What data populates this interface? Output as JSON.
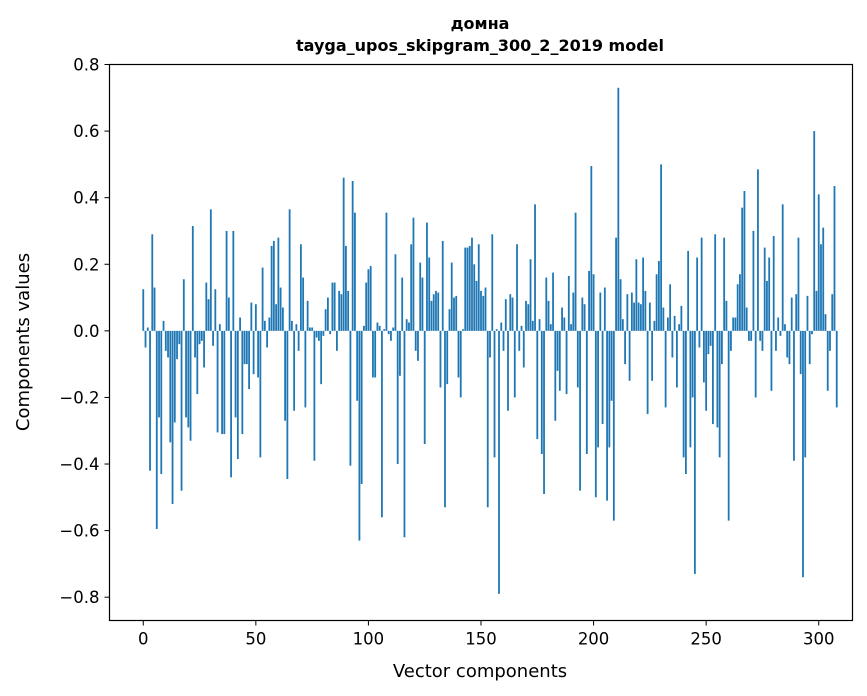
{
  "chart_data": {
    "type": "bar",
    "title_line1": "домна",
    "title_line2": "tayga_upos_skipgram_300_2_2019 model",
    "xlabel": "Vector components",
    "ylabel": "Components values",
    "xlim": [
      -15,
      315
    ],
    "ylim": [
      -0.87,
      0.8
    ],
    "xticks": [
      0,
      50,
      100,
      150,
      200,
      250,
      300
    ],
    "xtick_labels": [
      "0",
      "50",
      "100",
      "150",
      "200",
      "250",
      "300"
    ],
    "yticks": [
      -0.8,
      -0.6,
      -0.4,
      -0.2,
      0.0,
      0.2,
      0.4,
      0.6,
      0.8
    ],
    "ytick_labels": [
      "−0.8",
      "−0.6",
      "−0.4",
      "−0.2",
      "0.0",
      "0.2",
      "0.4",
      "0.6",
      "0.8"
    ],
    "bar_color": "#1f77b4",
    "values": [
      0.125,
      -0.05,
      0.01,
      -0.42,
      0.29,
      0.13,
      -0.595,
      -0.26,
      -0.43,
      0.03,
      -0.06,
      -0.08,
      -0.335,
      -0.52,
      -0.275,
      -0.085,
      -0.04,
      -0.48,
      0.155,
      -0.26,
      -0.29,
      -0.33,
      0.315,
      -0.08,
      -0.19,
      -0.04,
      -0.03,
      -0.11,
      0.145,
      0.095,
      0.365,
      -0.045,
      0.125,
      -0.305,
      0.02,
      -0.31,
      -0.31,
      0.3,
      0.1,
      -0.44,
      0.3,
      -0.26,
      -0.385,
      0.04,
      -0.31,
      -0.1,
      -0.1,
      -0.175,
      0.085,
      -0.13,
      0.08,
      -0.14,
      -0.38,
      0.19,
      0.03,
      -0.05,
      0.04,
      0.255,
      0.27,
      0.08,
      0.28,
      0.13,
      0.07,
      -0.27,
      -0.445,
      0.365,
      0.03,
      -0.24,
      0.02,
      -0.06,
      0.26,
      0.16,
      -0.23,
      0.09,
      0.01,
      0.01,
      -0.39,
      -0.02,
      -0.03,
      -0.16,
      -0.015,
      0.065,
      0.1,
      -0.01,
      0.145,
      0.145,
      -0.06,
      0.12,
      0.11,
      0.46,
      0.255,
      0.12,
      -0.405,
      0.45,
      0.355,
      -0.21,
      -0.63,
      -0.46,
      0.015,
      0.145,
      0.185,
      0.195,
      -0.14,
      -0.14,
      0.025,
      0.015,
      -0.56,
      0.005,
      0.355,
      -0.01,
      -0.03,
      0.01,
      0.23,
      -0.4,
      -0.135,
      0.16,
      -0.62,
      0.035,
      0.025,
      0.26,
      0.34,
      -0.06,
      -0.09,
      0.205,
      0.16,
      -0.34,
      0.325,
      0.22,
      0.09,
      0.11,
      0.12,
      0.115,
      -0.17,
      0.27,
      -0.53,
      -0.16,
      0.065,
      0.205,
      0.1,
      0.105,
      -0.14,
      -0.2,
      0.005,
      0.25,
      0.25,
      0.255,
      0.28,
      0.2,
      0.15,
      0.26,
      0.12,
      0.105,
      0.13,
      -0.53,
      -0.08,
      0.29,
      -0.38,
      0.005,
      -0.79,
      0.025,
      -0.06,
      0.095,
      -0.24,
      0.11,
      0.1,
      -0.2,
      0.26,
      -0.06,
      0.015,
      -0.11,
      0.09,
      0.08,
      0.215,
      0.03,
      0.38,
      -0.325,
      0.035,
      -0.37,
      -0.49,
      0.16,
      0.09,
      0.02,
      0.175,
      -0.27,
      -0.12,
      -0.18,
      0.07,
      0.04,
      -0.19,
      0.165,
      0.02,
      0.115,
      0.355,
      -0.17,
      -0.48,
      0.1,
      0.08,
      -0.37,
      0.18,
      0.495,
      0.17,
      -0.5,
      -0.35,
      0.115,
      -0.28,
      0.13,
      -0.51,
      -0.35,
      -0.21,
      -0.57,
      0.28,
      0.73,
      0.155,
      0.035,
      -0.1,
      0.11,
      -0.15,
      0.115,
      0.085,
      0.215,
      0.085,
      0.08,
      0.22,
      0.12,
      -0.25,
      0.085,
      -0.15,
      0.03,
      0.17,
      0.21,
      0.5,
      0.07,
      -0.23,
      0.04,
      0.14,
      -0.08,
      0.045,
      -0.17,
      0.02,
      0.075,
      -0.38,
      -0.43,
      0.24,
      -0.35,
      -0.2,
      -0.73,
      0.22,
      -0.05,
      0.28,
      -0.155,
      -0.24,
      -0.07,
      -0.045,
      -0.28,
      0.29,
      -0.29,
      -0.38,
      -0.1,
      0.28,
      0.09,
      -0.57,
      -0.06,
      0.04,
      0.04,
      0.14,
      0.17,
      0.37,
      0.42,
      0.07,
      -0.03,
      -0.03,
      0.3,
      -0.2,
      0.485,
      -0.03,
      -0.06,
      0.25,
      0.15,
      0.22,
      -0.18,
      0.285,
      -0.06,
      0.04,
      -0.015,
      0.38,
      0.02,
      -0.08,
      -0.1,
      0.1,
      -0.39,
      0.11,
      0.28,
      -0.13,
      -0.74,
      -0.38,
      0.105,
      -0.1,
      -0.01,
      0.6,
      0.12,
      0.41,
      0.26,
      0.31,
      0.05,
      -0.18,
      -0.06,
      0.11,
      0.435,
      -0.23
    ]
  }
}
